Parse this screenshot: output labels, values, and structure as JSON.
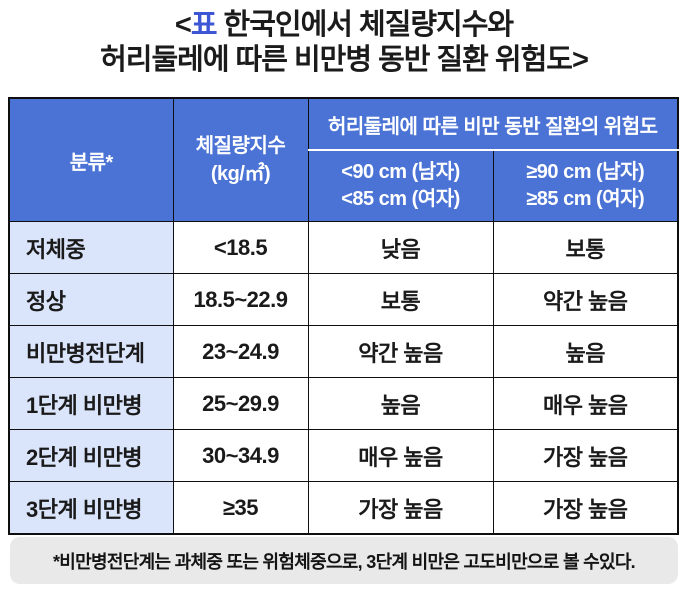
{
  "title": {
    "open_bracket": "<",
    "table_tag": "표",
    "line1_rest": " 한국인에서 체질량지수와",
    "line2": "허리둘레에 따른 비만병 동반 질환 위험도>"
  },
  "table": {
    "header": {
      "category": "분류*",
      "bmi_line1": "체질량지수",
      "bmi_line2": "(kg/㎡)",
      "waist_group": "허리둘레에 따른 비만 동반 질환의 위험도",
      "waist_under_line1": "<90 cm (남자)",
      "waist_under_line2": "<85 cm (여자)",
      "waist_over_line1": "≥90 cm (남자)",
      "waist_over_line2": "≥85 cm (여자)"
    },
    "rows": [
      {
        "category": "저체중",
        "bmi": "<18.5",
        "risk_under": "낮음",
        "risk_over": "보통"
      },
      {
        "category": "정상",
        "bmi": "18.5~22.9",
        "risk_under": "보통",
        "risk_over": "약간 높음"
      },
      {
        "category": "비만병전단계",
        "bmi": "23~24.9",
        "risk_under": "약간 높음",
        "risk_over": "높음"
      },
      {
        "category": "1단계 비만병",
        "bmi": "25~29.9",
        "risk_under": "높음",
        "risk_over": "매우 높음"
      },
      {
        "category": "2단계 비만병",
        "bmi": "30~34.9",
        "risk_under": "매우 높음",
        "risk_over": "가장 높음"
      },
      {
        "category": "3단계 비만병",
        "bmi": "≥35",
        "risk_under": "가장 높음",
        "risk_over": "가장 높음"
      }
    ]
  },
  "footnote": "*비만병전단계는 과체중 또는 위험체중으로, 3단계 비만은 고도비만으로 볼 수있다.",
  "colors": {
    "header_bg": "#4b73d5",
    "category_column_bg": "#dae4fa",
    "footnote_bg": "#e9e9e9",
    "title_tag_blue": "#3d56d4",
    "grid_border": "#0f0f0f",
    "header_text": "#ffffff",
    "body_text": "#1a1a1a"
  }
}
